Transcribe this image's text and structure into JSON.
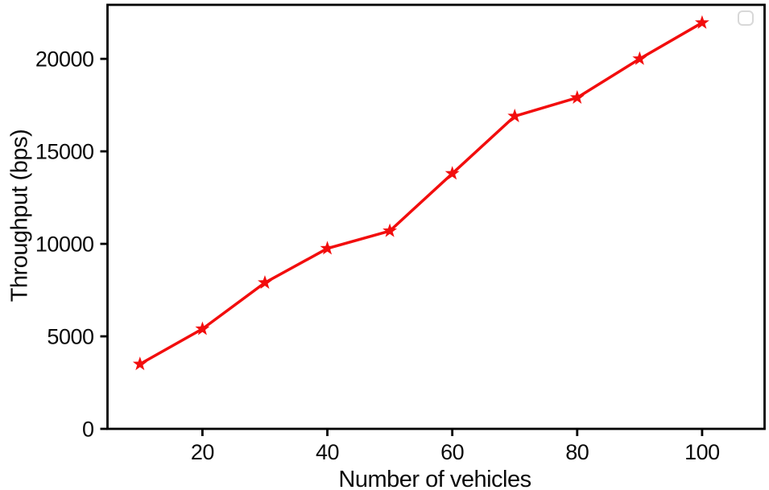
{
  "figure": {
    "background": "#ffffff"
  },
  "chart_data": {
    "type": "line",
    "title": "",
    "xlabel": "Number of vehicles",
    "ylabel": "Throughput (bps)",
    "x": [
      10,
      20,
      30,
      40,
      50,
      60,
      70,
      80,
      90,
      100
    ],
    "y": [
      3500,
      5400,
      7900,
      9750,
      10700,
      13800,
      16900,
      17900,
      20000,
      21950
    ],
    "xticks": [
      20,
      40,
      60,
      80,
      100
    ],
    "yticks": [
      0,
      5000,
      10000,
      15000,
      20000
    ],
    "xlim": [
      4.8,
      110
    ],
    "ylim": [
      0,
      22920
    ],
    "grid": false,
    "line_color": "#f20d0d",
    "marker": "star",
    "marker_color": "#f20d0d",
    "axis_color": "#000000",
    "text_color": "#0a0a0a",
    "legend": {
      "position": "upper right",
      "entries": [],
      "empty_box": true,
      "border_color": "#d8d8d8"
    }
  }
}
